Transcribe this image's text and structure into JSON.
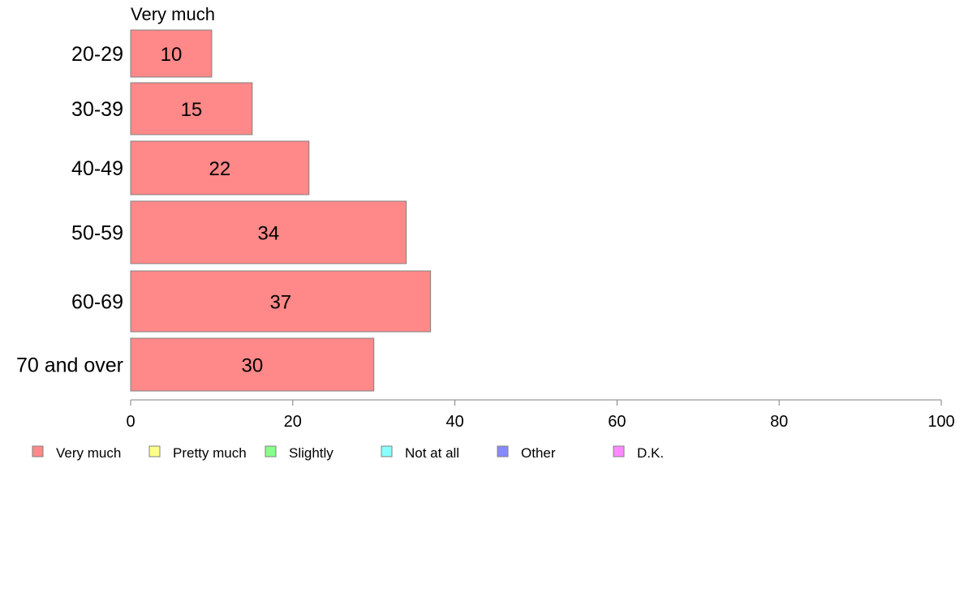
{
  "chart_data": {
    "type": "bar",
    "orientation": "horizontal",
    "panel_title": "Very much",
    "categories": [
      "20-29",
      "30-39",
      "40-49",
      "50-59",
      "60-69",
      "70 and over"
    ],
    "series": [
      {
        "name": "Very much",
        "values": [
          10,
          15,
          22,
          34,
          37,
          30
        ],
        "color": "#ff8888"
      }
    ],
    "xlim": [
      0,
      100
    ],
    "xticks": [
      0,
      20,
      40,
      60,
      80,
      100
    ],
    "legend": {
      "position": "bottom",
      "items": [
        {
          "label": "Very much",
          "color": "#ff8888"
        },
        {
          "label": "Pretty much",
          "color": "#ffff88"
        },
        {
          "label": "Slightly",
          "color": "#88ff88"
        },
        {
          "label": "Not at all",
          "color": "#88ffff"
        },
        {
          "label": "Other",
          "color": "#8888ff"
        },
        {
          "label": "D.K.",
          "color": "#ff88ff"
        }
      ]
    },
    "grid": false
  }
}
